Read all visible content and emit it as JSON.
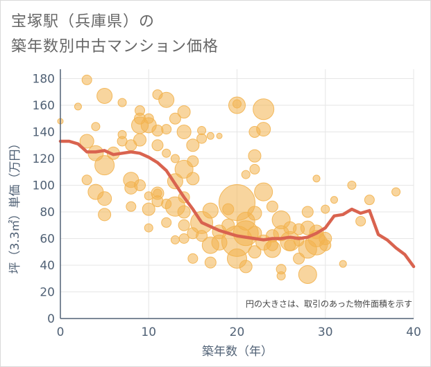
{
  "chart_data": {
    "type": "scatter",
    "title": [
      "宝塚駅（兵庫県）の",
      "築年数別中古マンション価格"
    ],
    "xlabel": "築年数（年）",
    "ylabel": "坪（3.3㎡）単価（万円）",
    "xlim": [
      0,
      40
    ],
    "ylim": [
      0,
      187
    ],
    "x_ticks": [
      0,
      10,
      20,
      30,
      40
    ],
    "y_ticks": [
      0,
      20,
      40,
      60,
      80,
      100,
      120,
      140,
      160,
      180
    ],
    "grid": true,
    "annotation": "円の大きさは、取引のあった物件面積を示す",
    "colors": {
      "bubble": "#f2b24f",
      "line": "#d9634f",
      "axis": "#506175",
      "grid": "#e6e6e6"
    },
    "series": [
      {
        "kind": "bubbles",
        "points": [
          [
            0,
            148,
            4
          ],
          [
            3,
            179,
            7
          ],
          [
            2,
            159,
            5
          ],
          [
            5,
            167,
            11
          ],
          [
            7,
            162,
            6
          ],
          [
            11,
            168,
            7
          ],
          [
            12,
            164,
            11
          ],
          [
            9,
            156,
            7
          ],
          [
            9,
            150,
            8
          ],
          [
            10,
            150,
            7
          ],
          [
            14,
            155,
            9
          ],
          [
            20,
            160,
            12
          ],
          [
            20,
            161,
            6
          ],
          [
            23,
            157,
            15
          ],
          [
            3,
            133,
            10
          ],
          [
            4,
            144,
            6
          ],
          [
            7,
            138,
            6
          ],
          [
            7,
            133,
            7
          ],
          [
            8,
            130,
            8
          ],
          [
            9,
            145,
            12
          ],
          [
            10,
            145,
            11
          ],
          [
            11,
            141,
            8
          ],
          [
            12,
            142,
            7
          ],
          [
            13,
            150,
            8
          ],
          [
            14,
            140,
            10
          ],
          [
            16,
            141,
            6
          ],
          [
            17,
            137,
            5
          ],
          [
            9,
            134,
            9
          ],
          [
            11,
            130,
            8
          ],
          [
            12,
            124,
            6
          ],
          [
            13,
            120,
            6
          ],
          [
            15,
            130,
            9
          ],
          [
            16,
            135,
            7
          ],
          [
            18,
            137,
            4
          ],
          [
            22,
            140,
            8
          ],
          [
            23,
            142,
            10
          ],
          [
            22,
            122,
            9
          ],
          [
            22,
            112,
            7
          ],
          [
            21,
            108,
            6
          ],
          [
            5,
            115,
            14
          ],
          [
            4,
            124,
            11
          ],
          [
            6,
            124,
            9
          ],
          [
            3,
            104,
            7
          ],
          [
            4,
            95,
            11
          ],
          [
            5,
            90,
            10
          ],
          [
            5,
            78,
            9
          ],
          [
            8,
            104,
            11
          ],
          [
            8,
            98,
            9
          ],
          [
            9,
            100,
            8
          ],
          [
            8,
            84,
            7
          ],
          [
            10,
            82,
            9
          ],
          [
            10,
            92,
            6
          ],
          [
            11,
            94,
            6
          ],
          [
            11,
            88,
            8
          ],
          [
            12,
            86,
            7
          ],
          [
            12,
            72,
            7
          ],
          [
            10,
            68,
            6
          ],
          [
            11,
            94,
            9
          ],
          [
            13,
            103,
            11
          ],
          [
            14,
            112,
            13
          ],
          [
            15,
            118,
            8
          ],
          [
            15,
            105,
            9
          ],
          [
            14,
            91,
            8
          ],
          [
            13,
            84,
            14
          ],
          [
            14,
            80,
            9
          ],
          [
            14,
            70,
            8
          ],
          [
            13,
            59,
            6
          ],
          [
            14,
            60,
            7
          ],
          [
            15,
            64,
            8
          ],
          [
            15,
            45,
            7
          ],
          [
            16,
            62,
            8
          ],
          [
            16,
            72,
            16
          ],
          [
            17,
            81,
            11
          ],
          [
            17,
            55,
            12
          ],
          [
            17,
            42,
            8
          ],
          [
            18,
            57,
            11
          ],
          [
            18,
            65,
            10
          ],
          [
            19,
            70,
            9
          ],
          [
            19,
            82,
            8
          ],
          [
            20,
            87,
            26
          ],
          [
            20,
            58,
            22
          ],
          [
            21,
            64,
            18
          ],
          [
            20,
            45,
            14
          ],
          [
            21,
            73,
            13
          ],
          [
            22,
            79,
            10
          ],
          [
            21,
            39,
            9
          ],
          [
            22,
            64,
            10
          ],
          [
            22,
            50,
            9
          ],
          [
            23,
            57,
            11
          ],
          [
            23,
            95,
            13
          ],
          [
            24,
            84,
            8
          ],
          [
            24,
            52,
            12
          ],
          [
            24,
            62,
            9
          ],
          [
            25,
            64,
            11
          ],
          [
            25,
            74,
            13
          ],
          [
            26,
            68,
            9
          ],
          [
            26,
            55,
            8
          ],
          [
            27,
            67,
            8
          ],
          [
            27,
            58,
            7
          ],
          [
            28,
            80,
            8
          ],
          [
            28,
            68,
            10
          ],
          [
            28,
            52,
            13
          ],
          [
            29,
            60,
            12
          ],
          [
            29,
            65,
            10
          ],
          [
            28,
            33,
            13
          ],
          [
            29,
            56,
            16
          ],
          [
            30,
            60,
            9
          ],
          [
            27,
            45,
            8
          ],
          [
            25,
            37,
            7
          ],
          [
            25,
            32,
            6
          ],
          [
            24,
            55,
            8
          ],
          [
            30,
            82,
            6
          ],
          [
            31,
            89,
            5
          ],
          [
            30,
            55,
            8
          ],
          [
            32,
            41,
            5
          ],
          [
            33,
            100,
            6
          ],
          [
            34,
            73,
            7
          ],
          [
            35,
            89,
            7
          ],
          [
            38,
            95,
            6
          ],
          [
            29,
            105,
            5
          ],
          [
            26,
            58,
            14
          ]
        ]
      },
      {
        "kind": "line",
        "x": [
          0,
          1,
          2,
          3,
          4,
          5,
          6,
          7,
          8,
          9,
          10,
          11,
          12,
          13,
          14,
          15,
          16,
          17,
          18,
          19,
          20,
          21,
          22,
          23,
          24,
          25,
          26,
          27,
          28,
          29,
          30,
          31,
          32,
          33,
          34,
          35,
          36,
          37,
          38,
          39,
          40
        ],
        "y": [
          133,
          133,
          131,
          125,
          125,
          126,
          123,
          124,
          125,
          124,
          121,
          117,
          111,
          101,
          91,
          82,
          72,
          69,
          66,
          64,
          62,
          61,
          60,
          59,
          60,
          60,
          61,
          60,
          61,
          64,
          68,
          77,
          78,
          82,
          79,
          81,
          63,
          59,
          53,
          48,
          39
        ]
      }
    ]
  }
}
